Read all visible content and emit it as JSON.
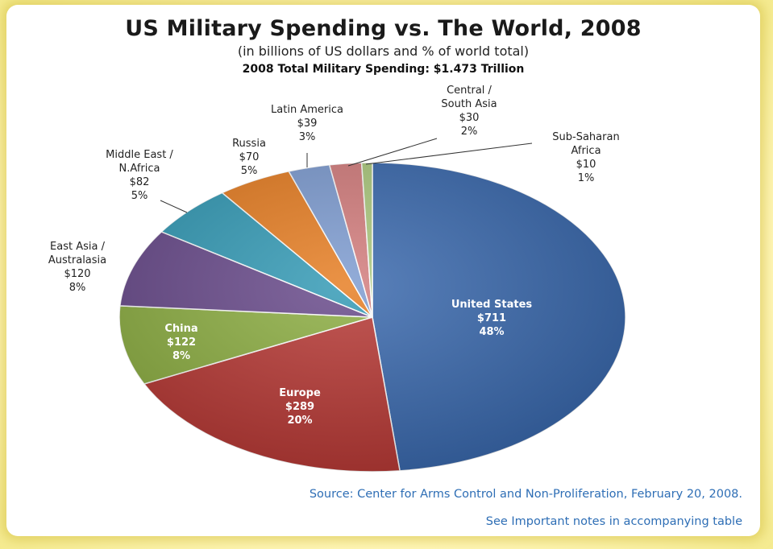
{
  "title": "US Military Spending vs. The World, 2008",
  "subtitle": "(in billions of US dollars and % of world total)",
  "total_line": "2008 Total Military Spending: $1.473 Trillion",
  "source": "Source: Center for Arms Control and Non-Proliferation, February 20, 2008.",
  "notes": "See Important notes in accompanying table",
  "chart_data": {
    "type": "pie",
    "slices": [
      {
        "name": "United States",
        "value_label": "$711",
        "percent_label": "48%",
        "value": 711,
        "color": "#3565ab"
      },
      {
        "name": "Europe",
        "value_label": "$289",
        "percent_label": "20%",
        "value": 289,
        "color": "#b53430"
      },
      {
        "name": "China",
        "value_label": "$122",
        "percent_label": "8%",
        "value": 122,
        "color": "#8aac3e"
      },
      {
        "name": "East Asia / Australasia",
        "value_label": "$120",
        "percent_label": "8%",
        "value": 120,
        "color": "#654688"
      },
      {
        "name": "Middle East / N.Africa",
        "value_label": "$82",
        "percent_label": "5%",
        "value": 82,
        "color": "#2f98b4"
      },
      {
        "name": "Russia",
        "value_label": "$70",
        "percent_label": "5%",
        "value": 70,
        "color": "#e67b1e"
      },
      {
        "name": "Latin America",
        "value_label": "$39",
        "percent_label": "3%",
        "value": 39,
        "color": "#7b9ad0"
      },
      {
        "name": "Central / South Asia",
        "value_label": "$30",
        "percent_label": "2%",
        "value": 30,
        "color": "#d27a7a"
      },
      {
        "name": "Sub-Saharan Africa",
        "value_label": "$10",
        "percent_label": "1%",
        "value": 10,
        "color": "#a9c77a"
      }
    ]
  }
}
